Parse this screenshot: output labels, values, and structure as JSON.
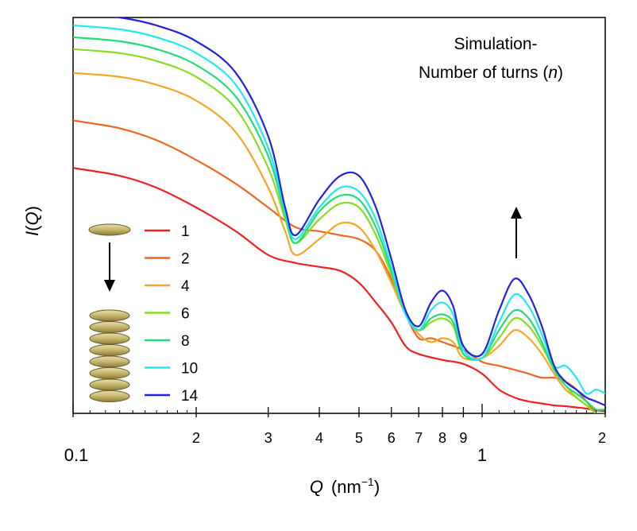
{
  "chart_data": {
    "type": "line",
    "annotation": {
      "line1": "Simulation-",
      "line2_prefix": "Number of turns (",
      "line2_var": "n",
      "line2_suffix": ")"
    },
    "xlabel": {
      "var": "Q",
      "unit_prefix": "(nm",
      "unit_exp": "−1",
      "unit_suffix": ")"
    },
    "ylabel": {
      "var": "I",
      "open": "(",
      "arg": "Q",
      "close": ")"
    },
    "x_scale": "log",
    "xlim": [
      0.1,
      2
    ],
    "ylim": [
      0,
      100
    ],
    "y_ticks_shown": false,
    "grid": false,
    "legend_position": "left",
    "x_ticks": [
      {
        "value": 0.1,
        "label": "0.1",
        "major": true
      },
      {
        "value": 0.2,
        "label": "2",
        "major": false
      },
      {
        "value": 0.3,
        "label": "3",
        "major": false
      },
      {
        "value": 0.4,
        "label": "4",
        "major": false
      },
      {
        "value": 0.5,
        "label": "5",
        "major": false
      },
      {
        "value": 0.6,
        "label": "6",
        "major": false
      },
      {
        "value": 0.7,
        "label": "7",
        "major": false
      },
      {
        "value": 0.8,
        "label": "8",
        "major": false
      },
      {
        "value": 0.9,
        "label": "9",
        "major": false
      },
      {
        "value": 1,
        "label": "1",
        "major": true
      },
      {
        "value": 2,
        "label": "2",
        "major": false
      }
    ],
    "arrow_annotation": {
      "x": 1.2,
      "direction": "up"
    },
    "series": [
      {
        "name": "1",
        "color": "#ee2222",
        "x": [
          0.1,
          0.13,
          0.16,
          0.2,
          0.25,
          0.3,
          0.35,
          0.4,
          0.45,
          0.5,
          0.55,
          0.6,
          0.65,
          0.7,
          0.8,
          0.9,
          1.0,
          1.1,
          1.2,
          1.3,
          1.4,
          1.5,
          1.6,
          1.7,
          1.8,
          1.9,
          2.0
        ],
        "y": [
          62,
          60,
          57,
          52,
          46,
          40,
          38,
          37,
          36,
          33,
          28,
          23,
          17,
          15,
          13.5,
          12.5,
          10,
          6,
          4,
          3,
          2.5,
          2,
          1.8,
          1.5,
          1.2,
          0.8,
          0.5
        ]
      },
      {
        "name": "2",
        "color": "#ee6622",
        "x": [
          0.1,
          0.13,
          0.16,
          0.2,
          0.25,
          0.3,
          0.35,
          0.4,
          0.45,
          0.5,
          0.55,
          0.6,
          0.65,
          0.7,
          0.75,
          0.8,
          0.9,
          1.0,
          1.1,
          1.2,
          1.3,
          1.4,
          1.5,
          1.6,
          1.7,
          1.8,
          1.9,
          2.0
        ],
        "y": [
          74,
          72,
          69,
          64,
          58,
          52,
          47,
          46,
          45,
          44,
          41,
          34,
          25,
          19,
          19,
          18,
          16,
          13,
          12,
          11,
          10,
          9,
          9,
          8,
          6,
          3,
          0,
          -2
        ]
      },
      {
        "name": "4",
        "color": "#f5a623",
        "x": [
          0.1,
          0.13,
          0.16,
          0.2,
          0.25,
          0.3,
          0.33,
          0.35,
          0.4,
          0.45,
          0.5,
          0.55,
          0.6,
          0.65,
          0.7,
          0.75,
          0.8,
          0.85,
          0.9,
          1.0,
          1.1,
          1.2,
          1.3,
          1.4,
          1.5,
          1.6,
          1.7,
          1.8,
          1.9,
          2.0
        ],
        "y": [
          86,
          85,
          83,
          79,
          71,
          57,
          46,
          40,
          44,
          48,
          47,
          41,
          33,
          25,
          20,
          18,
          19,
          18,
          14,
          14,
          17,
          21,
          19,
          15,
          10,
          6,
          4,
          2,
          0,
          -1
        ]
      },
      {
        "name": "6",
        "color": "#88dd22",
        "x": [
          0.1,
          0.13,
          0.16,
          0.2,
          0.25,
          0.3,
          0.33,
          0.35,
          0.4,
          0.45,
          0.5,
          0.55,
          0.6,
          0.65,
          0.7,
          0.75,
          0.8,
          0.85,
          0.9,
          1.0,
          1.1,
          1.2,
          1.3,
          1.4,
          1.5,
          1.6,
          1.7,
          1.8,
          1.9,
          2.0
        ],
        "y": [
          92,
          91,
          89,
          85,
          77,
          62,
          49,
          43,
          49,
          53,
          52,
          45,
          35,
          25,
          21,
          23,
          24,
          22,
          15,
          14,
          19,
          24,
          22,
          17,
          11,
          7,
          4,
          2,
          0,
          0
        ]
      },
      {
        "name": "8",
        "color": "#22dd77",
        "x": [
          0.1,
          0.13,
          0.16,
          0.2,
          0.25,
          0.3,
          0.33,
          0.35,
          0.4,
          0.45,
          0.5,
          0.55,
          0.6,
          0.65,
          0.7,
          0.75,
          0.8,
          0.85,
          0.9,
          1.0,
          1.1,
          1.2,
          1.3,
          1.4,
          1.5,
          1.6,
          1.7,
          1.8,
          1.9,
          2.0
        ],
        "y": [
          95,
          94,
          92,
          88,
          80,
          65,
          50,
          43,
          51,
          55,
          54,
          47,
          36,
          25,
          21,
          24,
          25,
          23,
          15,
          14,
          21,
          26,
          24,
          18,
          11,
          7,
          5,
          3,
          1,
          1
        ]
      },
      {
        "name": "10",
        "color": "#22e8f0",
        "x": [
          0.1,
          0.13,
          0.16,
          0.2,
          0.25,
          0.3,
          0.33,
          0.35,
          0.4,
          0.45,
          0.5,
          0.55,
          0.6,
          0.65,
          0.7,
          0.75,
          0.8,
          0.85,
          0.9,
          1.0,
          1.1,
          1.2,
          1.3,
          1.4,
          1.5,
          1.6,
          1.7,
          1.8,
          1.9,
          2.0
        ],
        "y": [
          98,
          97,
          95,
          91,
          83,
          67,
          51,
          44,
          52,
          57,
          56,
          49,
          37,
          25,
          21,
          26,
          28,
          25,
          16,
          14,
          23,
          30,
          27,
          20,
          12,
          12,
          9,
          5,
          6,
          5
        ]
      },
      {
        "name": "14",
        "color": "#2222dd",
        "x": [
          0.1,
          0.13,
          0.16,
          0.2,
          0.25,
          0.3,
          0.33,
          0.35,
          0.4,
          0.45,
          0.5,
          0.55,
          0.6,
          0.65,
          0.7,
          0.75,
          0.8,
          0.85,
          0.9,
          1.0,
          1.1,
          1.2,
          1.3,
          1.4,
          1.5,
          1.6,
          1.7,
          1.8,
          1.9,
          2.0
        ],
        "y": [
          101,
          100,
          98,
          94,
          86,
          70,
          52,
          45,
          54,
          60,
          60,
          52,
          39,
          26,
          22,
          28,
          31,
          27,
          17,
          15,
          26,
          34,
          30,
          22,
          12,
          8,
          6,
          4,
          3,
          2
        ]
      }
    ]
  }
}
